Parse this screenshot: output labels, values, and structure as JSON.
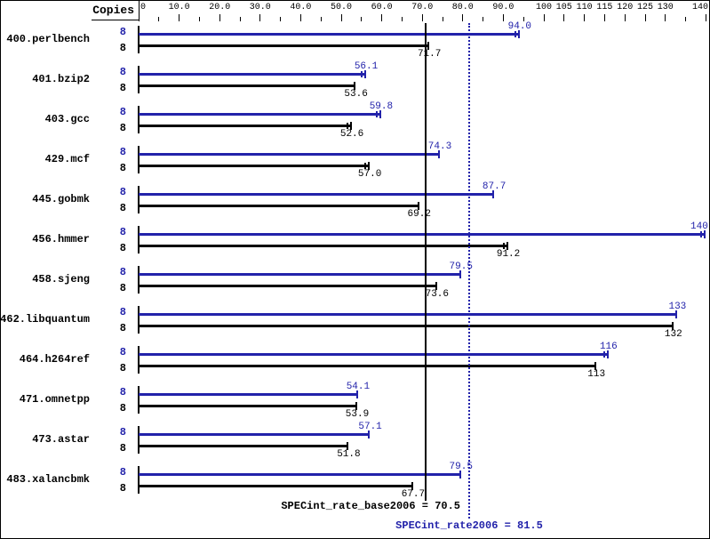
{
  "header": {
    "copies": "Copies"
  },
  "summary": {
    "base": "SPECint_rate_base2006 = 70.5",
    "peak": "SPECint_rate2006 = 81.5"
  },
  "chart_data": {
    "type": "bar",
    "orientation": "horizontal",
    "title": "",
    "xlabel": "Copies",
    "axis": {
      "min": 0,
      "max": 140,
      "ticks": [
        [
          0,
          "0"
        ],
        [
          5,
          null
        ],
        [
          10,
          "10.0"
        ],
        [
          15,
          null
        ],
        [
          20,
          "20.0"
        ],
        [
          25,
          null
        ],
        [
          30,
          "30.0"
        ],
        [
          35,
          null
        ],
        [
          40,
          "40.0"
        ],
        [
          45,
          null
        ],
        [
          50,
          "50.0"
        ],
        [
          55,
          null
        ],
        [
          60,
          "60.0"
        ],
        [
          65,
          null
        ],
        [
          70,
          "70.0"
        ],
        [
          75,
          null
        ],
        [
          80,
          "80.0"
        ],
        [
          85,
          null
        ],
        [
          90,
          "90.0"
        ],
        [
          95,
          null
        ],
        [
          100,
          "100"
        ],
        [
          105,
          "105"
        ],
        [
          110,
          "110"
        ],
        [
          115,
          "115"
        ],
        [
          120,
          "120"
        ],
        [
          125,
          "125"
        ],
        [
          130,
          "130"
        ],
        [
          135,
          null
        ],
        [
          140,
          "140"
        ]
      ]
    },
    "series": [
      "peak",
      "base"
    ],
    "colors": {
      "peak": "#2222aa",
      "base": "#000000"
    },
    "benchmarks": [
      {
        "name": "400.perlbench",
        "copies": 8,
        "peak": 94.0,
        "peak_label": "94.0",
        "peak_err": true,
        "base": 71.7,
        "base_label": "71.7",
        "base_err": false
      },
      {
        "name": "401.bzip2",
        "copies": 8,
        "peak": 56.1,
        "peak_label": "56.1",
        "peak_err": true,
        "base": 53.6,
        "base_label": "53.6",
        "base_err": false
      },
      {
        "name": "403.gcc",
        "copies": 8,
        "peak": 59.8,
        "peak_label": "59.8",
        "peak_err": true,
        "base": 52.6,
        "base_label": "52.6",
        "base_err": true
      },
      {
        "name": "429.mcf",
        "copies": 8,
        "peak": 74.3,
        "peak_label": "74.3",
        "peak_err": false,
        "base": 57.0,
        "base_label": "57.0",
        "base_err": true
      },
      {
        "name": "445.gobmk",
        "copies": 8,
        "peak": 87.7,
        "peak_label": "87.7",
        "peak_err": false,
        "base": 69.2,
        "base_label": "69.2",
        "base_err": false
      },
      {
        "name": "456.hmmer",
        "copies": 8,
        "peak": 140,
        "peak_label": "140",
        "peak_err": true,
        "base": 91.2,
        "base_label": "91.2",
        "base_err": true
      },
      {
        "name": "458.sjeng",
        "copies": 8,
        "peak": 79.5,
        "peak_label": "79.5",
        "peak_err": false,
        "base": 73.6,
        "base_label": "73.6",
        "base_err": false
      },
      {
        "name": "462.libquantum",
        "copies": 8,
        "peak": 133,
        "peak_label": "133",
        "peak_err": false,
        "base": 132,
        "base_label": "132",
        "base_err": false
      },
      {
        "name": "464.h264ref",
        "copies": 8,
        "peak": 116,
        "peak_label": "116",
        "peak_err": true,
        "base": 113,
        "base_label": "113",
        "base_err": false
      },
      {
        "name": "471.omnetpp",
        "copies": 8,
        "peak": 54.1,
        "peak_label": "54.1",
        "peak_err": false,
        "base": 53.9,
        "base_label": "53.9",
        "base_err": false
      },
      {
        "name": "473.astar",
        "copies": 8,
        "peak": 57.1,
        "peak_label": "57.1",
        "peak_err": false,
        "base": 51.8,
        "base_label": "51.8",
        "base_err": false
      },
      {
        "name": "483.xalancbmk",
        "copies": 8,
        "peak": 79.5,
        "peak_label": "79.5",
        "peak_err": false,
        "base": 67.7,
        "base_label": "67.7",
        "base_err": false
      }
    ],
    "reference_lines": [
      {
        "value": 70.5,
        "style": "solid",
        "color": "#000000",
        "label": "SPECint_rate_base2006 = 70.5"
      },
      {
        "value": 81.5,
        "style": "dotted",
        "color": "#2222aa",
        "label": "SPECint_rate2006 = 81.5"
      }
    ]
  }
}
